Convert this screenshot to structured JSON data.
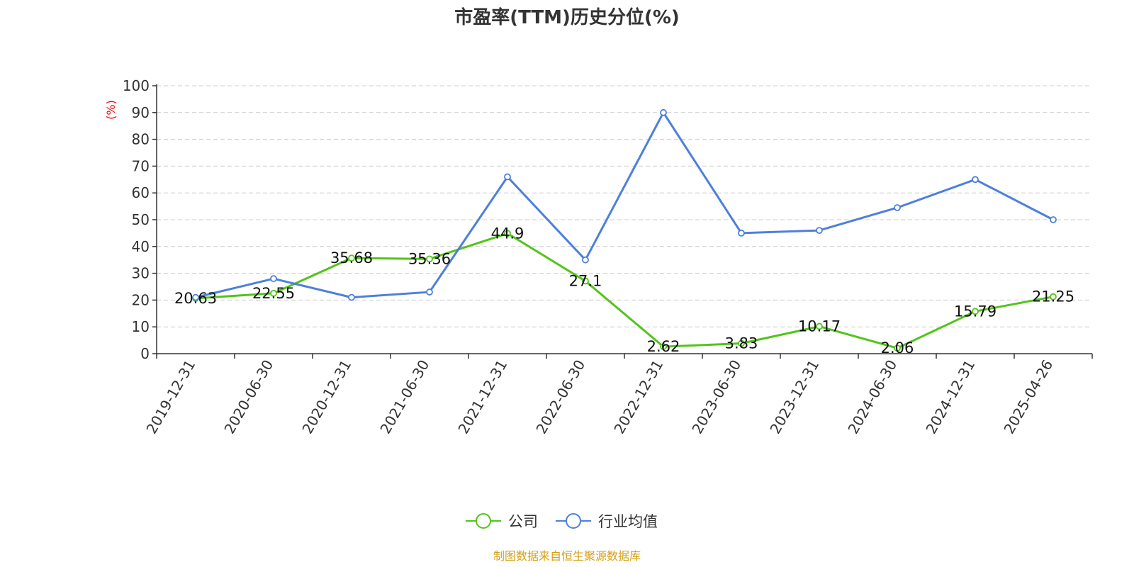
{
  "chart_data": {
    "type": "line",
    "title": "市盈率(TTM)历史分位(%)",
    "ylabel": "(%)",
    "ylim": [
      0,
      100
    ],
    "yticks": [
      0,
      10,
      20,
      30,
      40,
      50,
      60,
      70,
      80,
      90,
      100
    ],
    "grid": true,
    "legend_position": "bottom-center",
    "x": [
      "2019-12-31",
      "2020-06-30",
      "2020-12-31",
      "2021-06-30",
      "2021-12-31",
      "2022-06-30",
      "2022-12-31",
      "2023-06-30",
      "2023-12-31",
      "2024-06-30",
      "2024-12-31",
      "2025-04-26"
    ],
    "series": [
      {
        "name": "公司",
        "color": "#52c41a",
        "values": [
          20.63,
          22.55,
          35.68,
          35.36,
          44.9,
          27.1,
          2.62,
          3.83,
          10.17,
          2.06,
          15.79,
          21.25
        ],
        "labels": [
          "20.63",
          "22.55",
          "35.68",
          "35.36",
          "44.9",
          "27.1",
          "2.62",
          "3.83",
          "10.17",
          "2.06",
          "15.79",
          "21.25"
        ]
      },
      {
        "name": "行业均值",
        "color": "#4e7fdc",
        "values": [
          21,
          28,
          21,
          23,
          66,
          35,
          90,
          45,
          46,
          54.5,
          65,
          50
        ]
      }
    ]
  },
  "source_text": "制图数据来自恒生聚源数据库",
  "colors": {
    "axis": "#333333",
    "grid": "#cccccc",
    "unit_label": "#ff0000",
    "source": "#d4a017"
  }
}
